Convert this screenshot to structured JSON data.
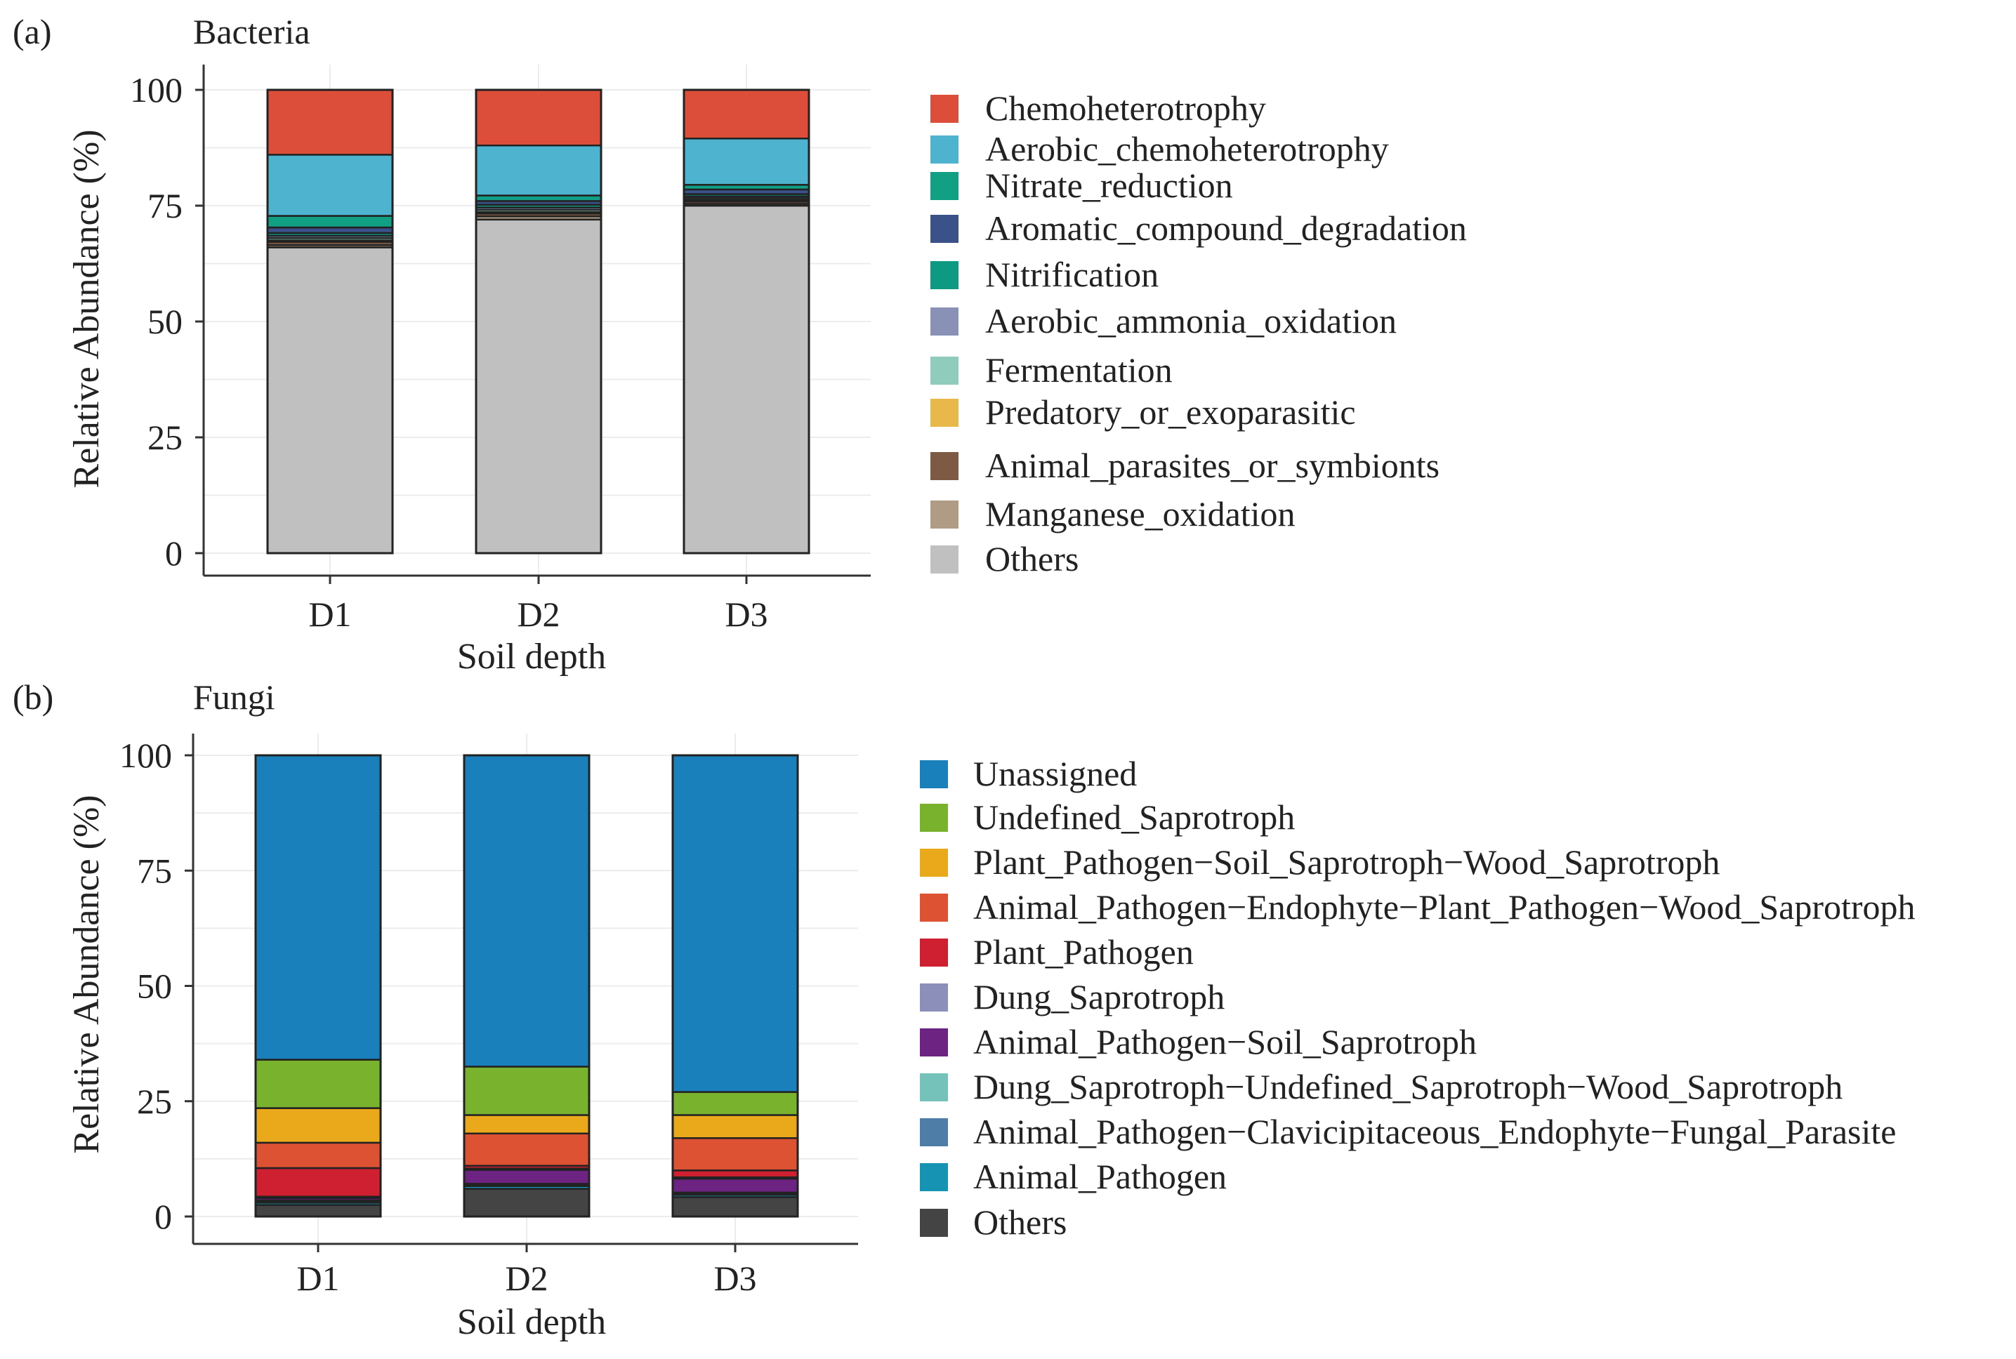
{
  "chart_data": [
    {
      "type": "bar",
      "stacked": true,
      "panel_label": "(a)",
      "title": "Bacteria",
      "xlabel": "Soil depth",
      "ylabel": "Relative Abundance (%)",
      "ylim": [
        0,
        100
      ],
      "yticks": [
        0,
        25,
        50,
        75,
        100
      ],
      "categories": [
        "D1",
        "D2",
        "D3"
      ],
      "legend_position": "right",
      "series": [
        {
          "name": "Chemoheterotrophy",
          "color": "#DC4E3A",
          "values": [
            14,
            12,
            10.5
          ]
        },
        {
          "name": "Aerobic_chemoheterotrophy",
          "color": "#4EB3CF",
          "values": [
            13.2,
            10.8,
            10
          ]
        },
        {
          "name": "Nitrate_reduction",
          "color": "#12A085",
          "values": [
            2.5,
            1.2,
            1
          ]
        },
        {
          "name": "Aromatic_compound_degradation",
          "color": "#3A5289",
          "values": [
            1.2,
            0.8,
            1
          ]
        },
        {
          "name": "Nitrification",
          "color": "#0E9A82",
          "values": [
            0.6,
            0.6,
            0.5
          ]
        },
        {
          "name": "Aerobic_ammonia_oxidation",
          "color": "#8A91B7",
          "values": [
            0.5,
            0.5,
            0.4
          ]
        },
        {
          "name": "Fermentation",
          "color": "#8FCCBC",
          "values": [
            0.5,
            0.5,
            0.4
          ]
        },
        {
          "name": "Predatory_or_exoparasitic",
          "color": "#E8B84A",
          "values": [
            0.3,
            0.3,
            0.3
          ]
        },
        {
          "name": "Animal_parasites_or_symbionts",
          "color": "#7E5A45",
          "values": [
            0.7,
            0.6,
            0.5
          ]
        },
        {
          "name": "Manganese_oxidation",
          "color": "#B09B84",
          "values": [
            0.5,
            0.7,
            0.4
          ]
        },
        {
          "name": "Others",
          "color": "#C0C0C0",
          "values": [
            66,
            72,
            75
          ]
        }
      ]
    },
    {
      "type": "bar",
      "stacked": true,
      "panel_label": "(b)",
      "title": "Fungi",
      "xlabel": "Soil depth",
      "ylabel": "Relative Abundance (%)",
      "ylim": [
        0,
        100
      ],
      "yticks": [
        0,
        25,
        50,
        75,
        100
      ],
      "categories": [
        "D1",
        "D2",
        "D3"
      ],
      "legend_position": "right",
      "series": [
        {
          "name": "Unassigned",
          "color": "#1980BC",
          "values": [
            66,
            67.5,
            73
          ]
        },
        {
          "name": "Undefined_Saprotroph",
          "color": "#79B22C",
          "values": [
            10.5,
            10.5,
            5
          ]
        },
        {
          "name": "Plant_Pathogen−Soil_Saprotroph−Wood_Saprotroph",
          "color": "#EAA91A",
          "values": [
            7.5,
            4,
            5
          ]
        },
        {
          "name": "Animal_Pathogen−Endophyte−Plant_Pathogen−Wood_Saprotroph",
          "color": "#DD5233",
          "values": [
            5.5,
            7,
            7
          ]
        },
        {
          "name": "Plant_Pathogen",
          "color": "#CE2030",
          "values": [
            6.2,
            0.6,
            1.5
          ]
        },
        {
          "name": "Dung_Saprotroph",
          "color": "#8B8FB9",
          "values": [
            0.3,
            0.3,
            0.3
          ]
        },
        {
          "name": "Animal_Pathogen−Soil_Saprotroph",
          "color": "#6D2382",
          "values": [
            0.5,
            3,
            3
          ]
        },
        {
          "name": "Dung_Saprotroph−Undefined_Saprotroph−Wood_Saprotroph",
          "color": "#74C2BA",
          "values": [
            0.3,
            0.3,
            0.3
          ]
        },
        {
          "name": "Animal_Pathogen−Clavicipitaceous_Endophyte−Fungal_Parasite",
          "color": "#4E7EA7",
          "values": [
            0.2,
            0.2,
            0.2
          ]
        },
        {
          "name": "Animal_Pathogen",
          "color": "#1693B3",
          "values": [
            0.5,
            0.6,
            0.5
          ]
        },
        {
          "name": "Others",
          "color": "#444444",
          "values": [
            2.5,
            6,
            4.2
          ]
        }
      ]
    }
  ]
}
